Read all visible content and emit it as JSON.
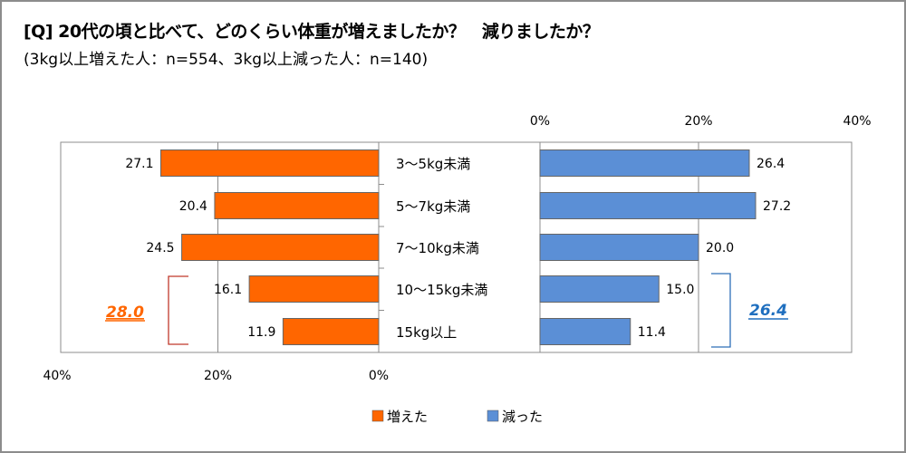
{
  "title": "[Q] 20代の頃と比べて、どのくらい体重が増えましたか？　減りましたか？",
  "subtitle": "(3kg以上増えた人：n=554、3kg以上減った人：n=140)",
  "colors": {
    "increased": "#ff6600",
    "decreased": "#5b8fd6",
    "increased_total": "#ff6600",
    "decreased_total": "#1f6fbf",
    "bracket_left": "#c0392b",
    "bracket_right": "#2e6fb8"
  },
  "chart_data": {
    "type": "bar",
    "orientation": "horizontal-butterfly",
    "categories": [
      "3〜5kg未満",
      "5〜7kg未満",
      "7〜10kg未満",
      "10〜15kg未満",
      "15kg以上"
    ],
    "series": [
      {
        "name": "増えた",
        "values": [
          27.1,
          20.4,
          24.5,
          16.1,
          11.9
        ],
        "labels": [
          "27.1",
          "20.4",
          "24.5",
          "16.1",
          "11.9"
        ]
      },
      {
        "name": "減った",
        "values": [
          26.4,
          27.2,
          20.0,
          15.0,
          11.4
        ],
        "labels": [
          "26.4",
          "27.2",
          "20.0",
          "15.0",
          "11.4"
        ]
      }
    ],
    "left_axis": {
      "ticks": [
        "40%",
        "20%",
        "0%"
      ],
      "range": [
        40,
        0
      ]
    },
    "right_axis": {
      "ticks": [
        "0%",
        "20%",
        "40%"
      ],
      "range": [
        0,
        40
      ]
    },
    "annotations": {
      "increased_total": "28.0",
      "decreased_total": "26.4"
    },
    "legend": [
      "増えた",
      "減った"
    ],
    "legend_placement": "bottom",
    "grid": true
  }
}
